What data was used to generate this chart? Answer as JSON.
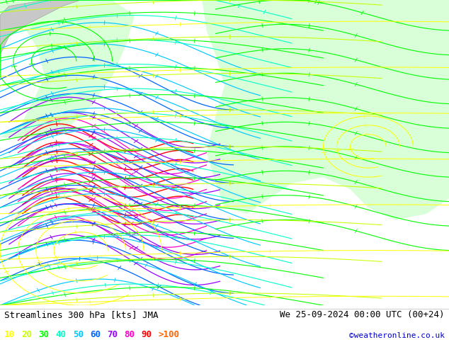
{
  "title_left": "Streamlines 300 hPa [kts] JMA",
  "title_right": "We 25-09-2024 00:00 UTC (00+24)",
  "credit": "©weatheronline.co.uk",
  "legend_values": [
    "10",
    "20",
    "30",
    "40",
    "50",
    "60",
    "70",
    "80",
    "90",
    ">100"
  ],
  "legend_colors": [
    "#ffff00",
    "#c8ff00",
    "#00ff00",
    "#00ffc8",
    "#00c8ff",
    "#0064ff",
    "#9600ff",
    "#ff00c8",
    "#ff0000",
    "#ff6400"
  ],
  "bg_color": "#ffffff",
  "map_bg_ocean": "#c8ffc8",
  "map_bg_land": "#e0e0e0",
  "fig_width": 6.34,
  "fig_height": 4.9,
  "dpi": 100,
  "title_fontsize": 9,
  "legend_fontsize": 9
}
